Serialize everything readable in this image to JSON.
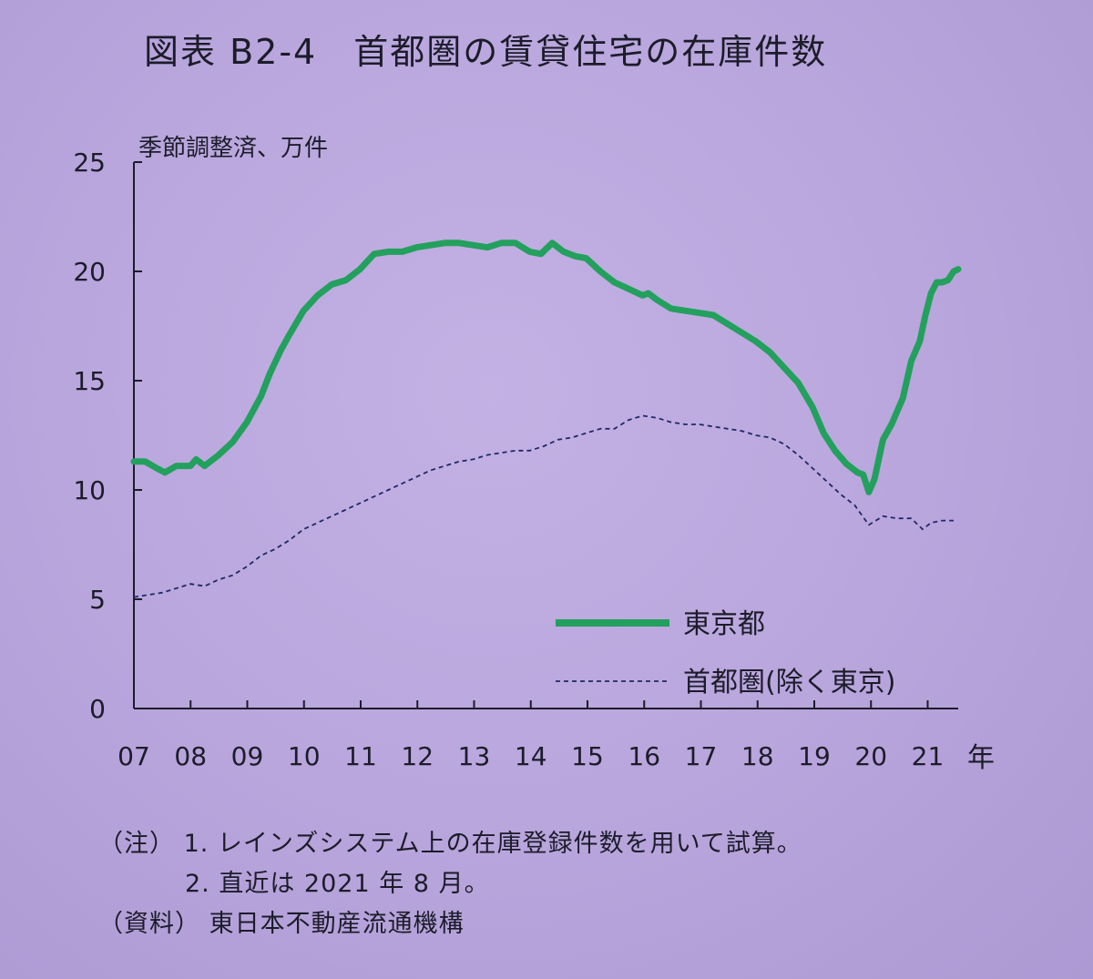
{
  "header": {
    "figure_label": "図表 B2-4",
    "title": "首都圏の賃貸住宅の在庫件数"
  },
  "chart_data": {
    "type": "line",
    "title": "首都圏の賃貸住宅の在庫件数",
    "ylabel": "季節調整済、万件",
    "xlabel": "年",
    "ylim": [
      0,
      25
    ],
    "yticks": [
      0,
      5,
      10,
      15,
      20,
      25
    ],
    "xlim": [
      2007.0,
      2021.58
    ],
    "xtick_labels": [
      "07",
      "08",
      "09",
      "10",
      "11",
      "12",
      "13",
      "14",
      "15",
      "16",
      "17",
      "18",
      "19",
      "20",
      "21"
    ],
    "grid": false,
    "legend_position": "bottom-right",
    "series": [
      {
        "name": "東京都",
        "style": "solid-thick",
        "color": "#23a05d",
        "points": [
          [
            2007.0,
            11.3
          ],
          [
            2007.2,
            11.3
          ],
          [
            2007.4,
            11.0
          ],
          [
            2007.55,
            10.8
          ],
          [
            2007.75,
            11.1
          ],
          [
            2008.0,
            11.1
          ],
          [
            2008.1,
            11.4
          ],
          [
            2008.25,
            11.1
          ],
          [
            2008.5,
            11.6
          ],
          [
            2008.75,
            12.2
          ],
          [
            2009.0,
            13.1
          ],
          [
            2009.25,
            14.3
          ],
          [
            2009.4,
            15.3
          ],
          [
            2009.6,
            16.4
          ],
          [
            2009.75,
            17.1
          ],
          [
            2010.0,
            18.2
          ],
          [
            2010.25,
            18.9
          ],
          [
            2010.5,
            19.4
          ],
          [
            2010.75,
            19.6
          ],
          [
            2011.0,
            20.1
          ],
          [
            2011.25,
            20.8
          ],
          [
            2011.5,
            20.9
          ],
          [
            2011.75,
            20.9
          ],
          [
            2012.0,
            21.1
          ],
          [
            2012.25,
            21.2
          ],
          [
            2012.5,
            21.3
          ],
          [
            2012.75,
            21.3
          ],
          [
            2013.0,
            21.2
          ],
          [
            2013.25,
            21.1
          ],
          [
            2013.5,
            21.3
          ],
          [
            2013.75,
            21.3
          ],
          [
            2014.0,
            20.9
          ],
          [
            2014.2,
            20.8
          ],
          [
            2014.4,
            21.3
          ],
          [
            2014.6,
            20.9
          ],
          [
            2014.8,
            20.7
          ],
          [
            2015.0,
            20.6
          ],
          [
            2015.25,
            20.0
          ],
          [
            2015.5,
            19.5
          ],
          [
            2015.75,
            19.2
          ],
          [
            2016.0,
            18.9
          ],
          [
            2016.1,
            19.0
          ],
          [
            2016.25,
            18.7
          ],
          [
            2016.5,
            18.3
          ],
          [
            2016.75,
            18.2
          ],
          [
            2017.0,
            18.1
          ],
          [
            2017.25,
            18.0
          ],
          [
            2017.5,
            17.6
          ],
          [
            2017.75,
            17.2
          ],
          [
            2018.0,
            16.8
          ],
          [
            2018.25,
            16.3
          ],
          [
            2018.5,
            15.6
          ],
          [
            2018.75,
            14.9
          ],
          [
            2019.0,
            13.8
          ],
          [
            2019.2,
            12.6
          ],
          [
            2019.4,
            11.8
          ],
          [
            2019.6,
            11.2
          ],
          [
            2019.8,
            10.8
          ],
          [
            2019.9,
            10.7
          ],
          [
            2020.0,
            9.9
          ],
          [
            2020.1,
            10.5
          ],
          [
            2020.25,
            12.3
          ],
          [
            2020.4,
            13.0
          ],
          [
            2020.6,
            14.2
          ],
          [
            2020.75,
            15.9
          ],
          [
            2020.9,
            16.8
          ],
          [
            2021.0,
            18.0
          ],
          [
            2021.1,
            19.0
          ],
          [
            2021.2,
            19.5
          ],
          [
            2021.3,
            19.5
          ],
          [
            2021.4,
            19.6
          ],
          [
            2021.5,
            20.0
          ],
          [
            2021.58,
            20.1
          ]
        ]
      },
      {
        "name": "首都圏(除く東京)",
        "style": "dashed-thin",
        "color": "#1e2a66",
        "points": [
          [
            2007.0,
            5.1
          ],
          [
            2007.25,
            5.2
          ],
          [
            2007.5,
            5.3
          ],
          [
            2007.75,
            5.5
          ],
          [
            2008.0,
            5.7
          ],
          [
            2008.25,
            5.6
          ],
          [
            2008.5,
            5.9
          ],
          [
            2008.75,
            6.1
          ],
          [
            2009.0,
            6.5
          ],
          [
            2009.25,
            7.0
          ],
          [
            2009.5,
            7.3
          ],
          [
            2009.75,
            7.7
          ],
          [
            2010.0,
            8.2
          ],
          [
            2010.25,
            8.5
          ],
          [
            2010.5,
            8.8
          ],
          [
            2010.75,
            9.1
          ],
          [
            2011.0,
            9.4
          ],
          [
            2011.25,
            9.7
          ],
          [
            2011.5,
            10.0
          ],
          [
            2011.75,
            10.3
          ],
          [
            2012.0,
            10.6
          ],
          [
            2012.25,
            10.9
          ],
          [
            2012.5,
            11.1
          ],
          [
            2012.75,
            11.3
          ],
          [
            2013.0,
            11.4
          ],
          [
            2013.25,
            11.6
          ],
          [
            2013.5,
            11.7
          ],
          [
            2013.75,
            11.8
          ],
          [
            2014.0,
            11.8
          ],
          [
            2014.25,
            12.0
          ],
          [
            2014.5,
            12.3
          ],
          [
            2014.75,
            12.4
          ],
          [
            2015.0,
            12.6
          ],
          [
            2015.25,
            12.8
          ],
          [
            2015.5,
            12.8
          ],
          [
            2015.75,
            13.2
          ],
          [
            2016.0,
            13.4
          ],
          [
            2016.25,
            13.3
          ],
          [
            2016.5,
            13.1
          ],
          [
            2016.75,
            13.0
          ],
          [
            2017.0,
            13.0
          ],
          [
            2017.25,
            12.9
          ],
          [
            2017.5,
            12.8
          ],
          [
            2017.75,
            12.7
          ],
          [
            2018.0,
            12.5
          ],
          [
            2018.25,
            12.4
          ],
          [
            2018.5,
            12.1
          ],
          [
            2018.75,
            11.6
          ],
          [
            2019.0,
            11.0
          ],
          [
            2019.25,
            10.4
          ],
          [
            2019.5,
            9.8
          ],
          [
            2019.75,
            9.3
          ],
          [
            2020.0,
            8.4
          ],
          [
            2020.25,
            8.8
          ],
          [
            2020.5,
            8.7
          ],
          [
            2020.75,
            8.7
          ],
          [
            2020.95,
            8.2
          ],
          [
            2021.1,
            8.5
          ],
          [
            2021.3,
            8.6
          ],
          [
            2021.5,
            8.6
          ]
        ]
      }
    ]
  },
  "notes": {
    "note_label": "（注）",
    "note_1": "1. レインズシステム上の在庫登録件数を用いて試算。",
    "note_2": "2. 直近は 2021 年 8 月。",
    "source_label": "（資料）",
    "source": "東日本不動産流通機構"
  }
}
